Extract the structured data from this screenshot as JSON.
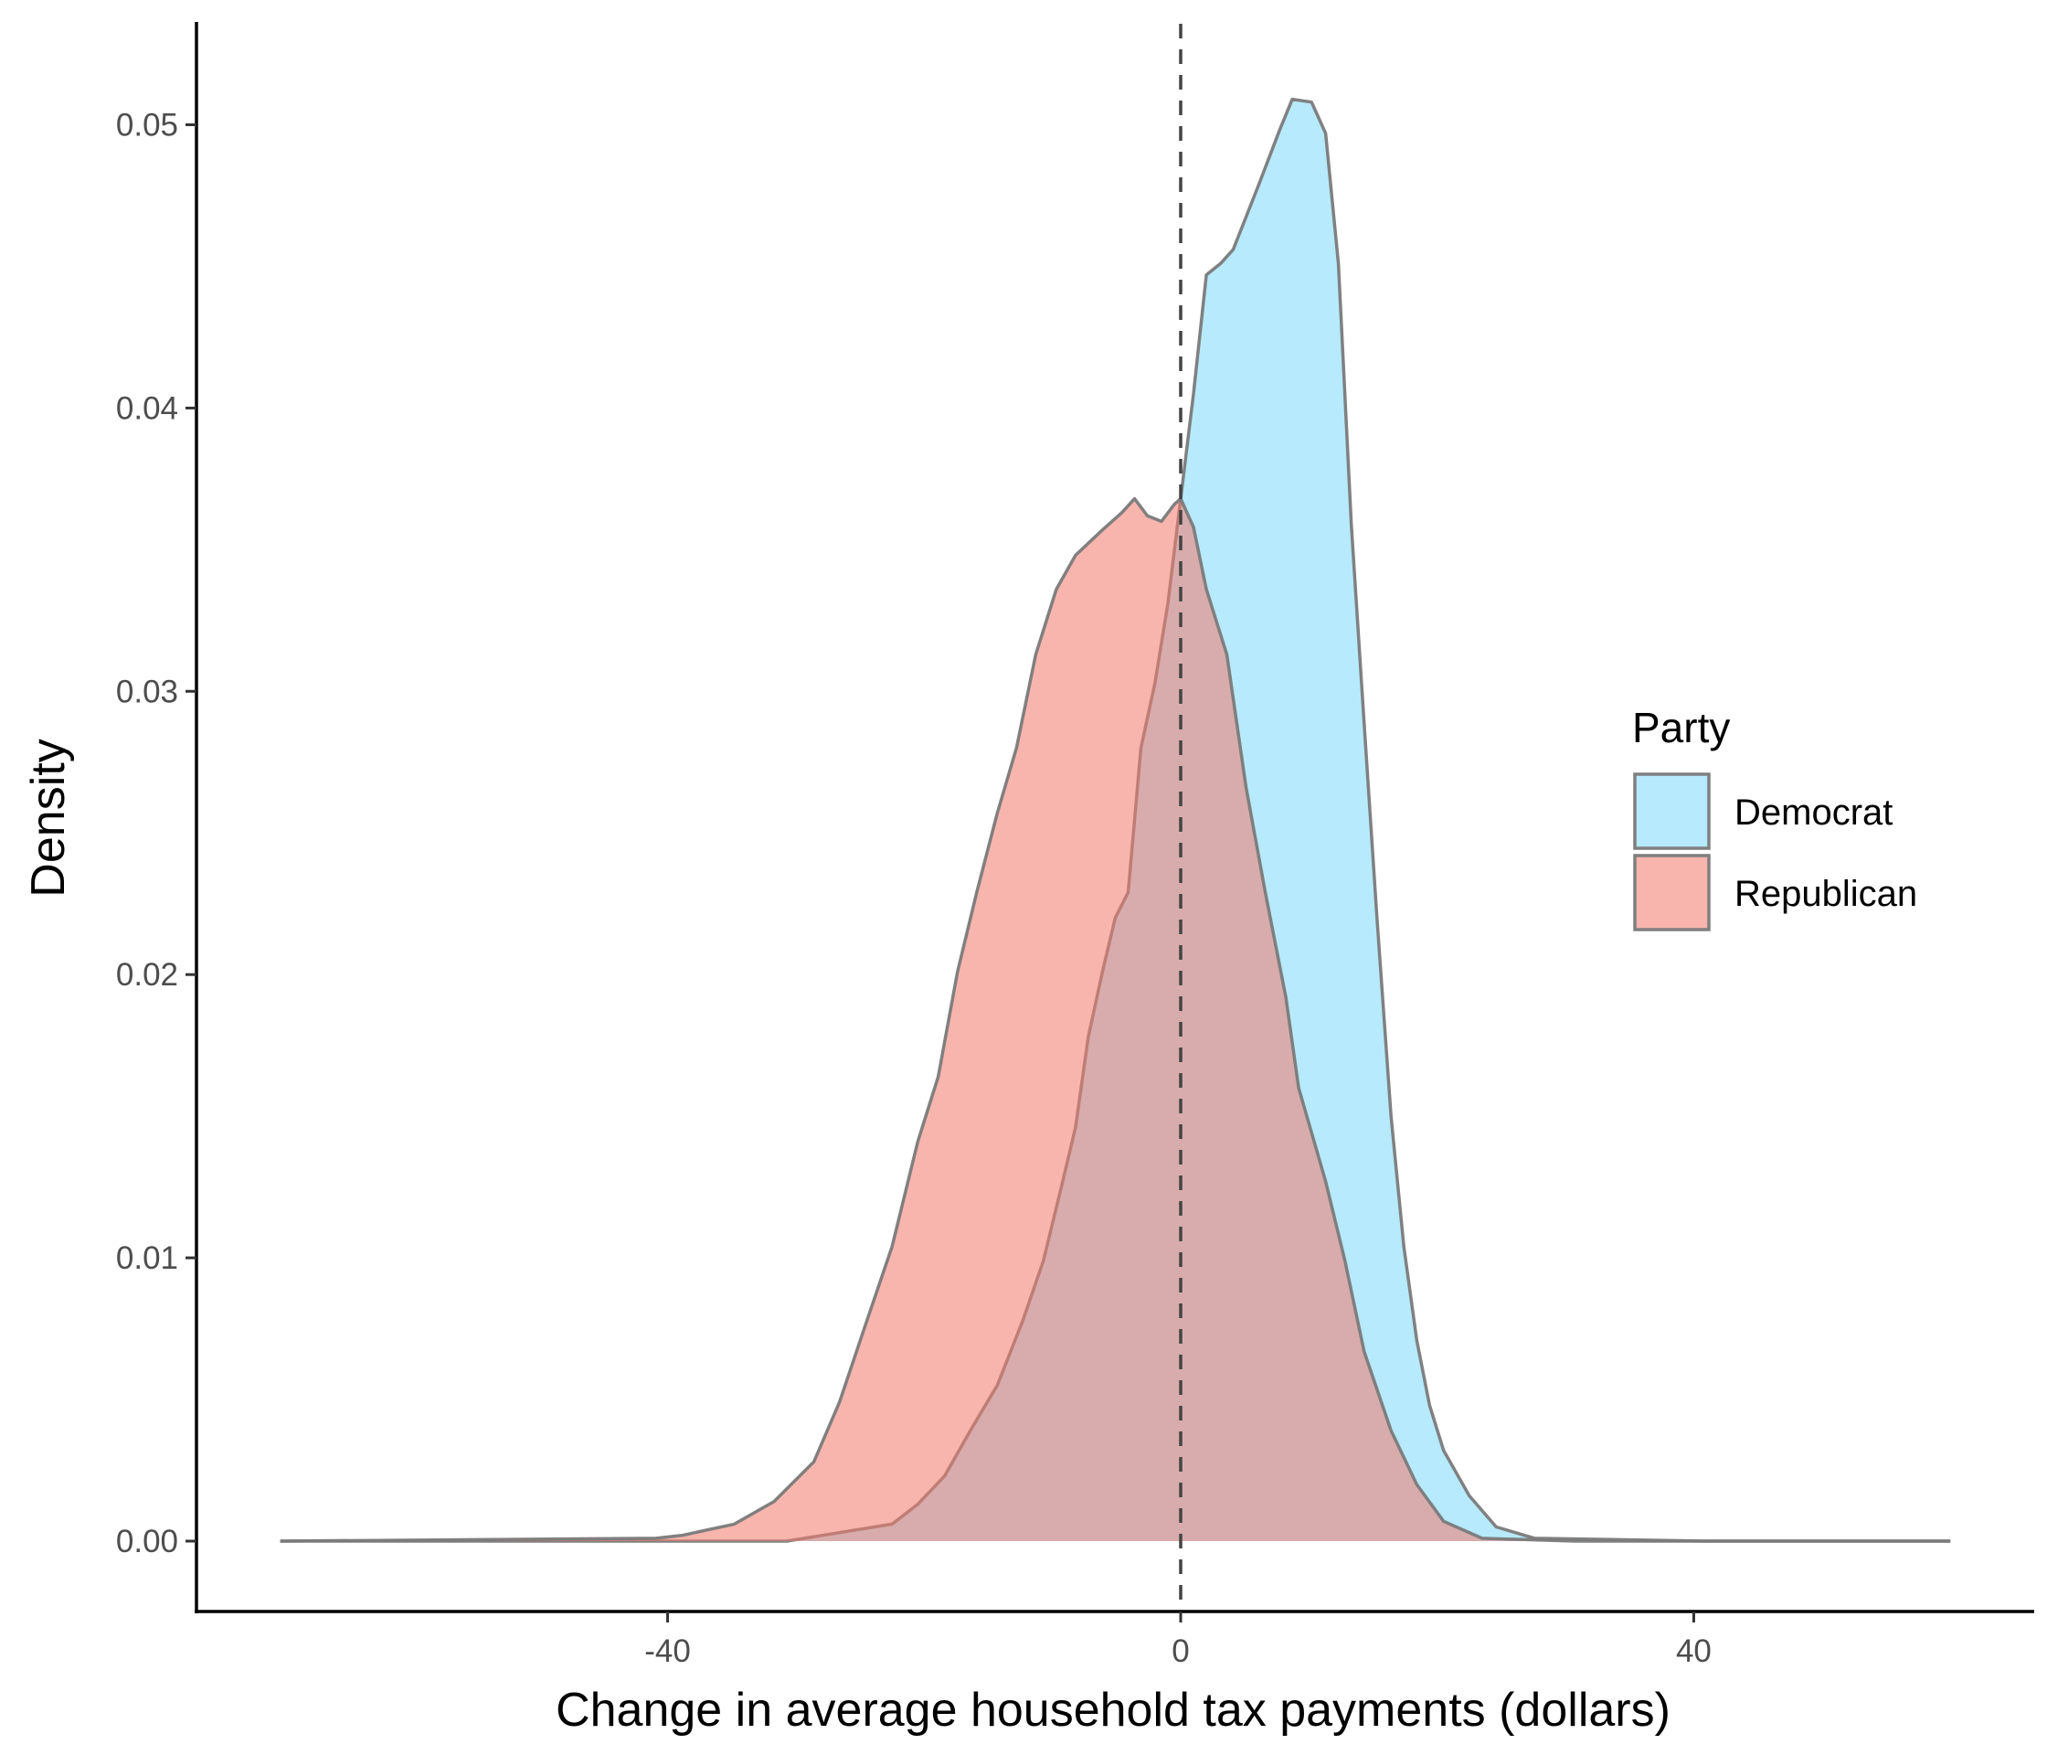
{
  "chart_data": {
    "type": "area",
    "subtype": "density",
    "title": "",
    "xlabel": "Change in average household tax payments (dollars)",
    "ylabel": "Density",
    "xlim": [
      -72,
      74
    ],
    "ylim": [
      -0.0025,
      0.0535
    ],
    "x_ticks": [
      -40,
      0,
      40
    ],
    "x_tick_labels": [
      "-40",
      "0",
      "40"
    ],
    "y_ticks": [
      0,
      0.01,
      0.02,
      0.03,
      0.04,
      0.05
    ],
    "y_tick_labels": [
      "0.00",
      "0.01",
      "0.02",
      "0.03",
      "0.04",
      "0.05"
    ],
    "reference_line": {
      "x": 0,
      "style": "dashed"
    },
    "grid": false,
    "legend": {
      "title": "Party",
      "placement": "right"
    },
    "series": [
      {
        "name": "Democrat",
        "color": "#b6eafc",
        "points": [
          [
            -70.2,
            0
          ],
          [
            -30.7,
            0
          ],
          [
            -26.6,
            0.0003
          ],
          [
            -22.5,
            0.0006
          ],
          [
            -20.5,
            0.0013
          ],
          [
            -18.4,
            0.0023
          ],
          [
            -16.4,
            0.0039
          ],
          [
            -14.3,
            0.0055
          ],
          [
            -12.3,
            0.0078
          ],
          [
            -10.7,
            0.0099
          ],
          [
            -9.2,
            0.0127
          ],
          [
            -8.2,
            0.0146
          ],
          [
            -7.2,
            0.0178
          ],
          [
            -6.1,
            0.0201
          ],
          [
            -5.1,
            0.022
          ],
          [
            -4.1,
            0.0229
          ],
          [
            -3.1,
            0.028
          ],
          [
            -2.0,
            0.0303
          ],
          [
            -1.0,
            0.0331
          ],
          [
            0,
            0.0368
          ],
          [
            1.0,
            0.0405
          ],
          [
            2.0,
            0.0447
          ],
          [
            3.1,
            0.0451
          ],
          [
            4.1,
            0.0456
          ],
          [
            6.1,
            0.0479
          ],
          [
            7.7,
            0.0498
          ],
          [
            8.7,
            0.0509
          ],
          [
            10.2,
            0.0508
          ],
          [
            11.3,
            0.0497
          ],
          [
            12.3,
            0.0451
          ],
          [
            13.3,
            0.0359
          ],
          [
            14.3,
            0.0289
          ],
          [
            15.3,
            0.022
          ],
          [
            16.4,
            0.015
          ],
          [
            17.4,
            0.0104
          ],
          [
            18.4,
            0.0071
          ],
          [
            19.4,
            0.0048
          ],
          [
            20.5,
            0.0032
          ],
          [
            22.5,
            0.0016
          ],
          [
            24.6,
            0.0005
          ],
          [
            27.6,
            0.0001
          ],
          [
            40.9,
            0
          ],
          [
            60,
            0
          ]
        ]
      },
      {
        "name": "Republican",
        "color": "#f8b5ad",
        "points": [
          [
            -70.2,
            0
          ],
          [
            -40.9,
            0.0001
          ],
          [
            -38.9,
            0.0002
          ],
          [
            -34.8,
            0.0006
          ],
          [
            -31.7,
            0.0014
          ],
          [
            -28.6,
            0.0028
          ],
          [
            -26.6,
            0.0049
          ],
          [
            -24.6,
            0.0076
          ],
          [
            -22.5,
            0.0104
          ],
          [
            -20.5,
            0.0141
          ],
          [
            -18.9,
            0.0164
          ],
          [
            -17.4,
            0.0201
          ],
          [
            -15.9,
            0.0229
          ],
          [
            -14.3,
            0.0257
          ],
          [
            -12.8,
            0.028
          ],
          [
            -11.3,
            0.0313
          ],
          [
            -9.7,
            0.0336
          ],
          [
            -8.2,
            0.0348
          ],
          [
            -6.1,
            0.0357
          ],
          [
            -4.6,
            0.0363
          ],
          [
            -3.6,
            0.0368
          ],
          [
            -2.6,
            0.0362
          ],
          [
            -1.5,
            0.036
          ],
          [
            -0.5,
            0.0366
          ],
          [
            0,
            0.0368
          ],
          [
            1.0,
            0.0358
          ],
          [
            2.0,
            0.0336
          ],
          [
            3.6,
            0.0313
          ],
          [
            5.1,
            0.0266
          ],
          [
            6.6,
            0.0229
          ],
          [
            8.2,
            0.0192
          ],
          [
            9.2,
            0.016
          ],
          [
            11.3,
            0.0127
          ],
          [
            12.8,
            0.0099
          ],
          [
            14.3,
            0.0067
          ],
          [
            16.4,
            0.0039
          ],
          [
            18.4,
            0.002
          ],
          [
            20.5,
            0.0007
          ],
          [
            23.5,
            0.0001
          ],
          [
            30.7,
            0
          ],
          [
            60,
            0
          ]
        ]
      }
    ]
  }
}
